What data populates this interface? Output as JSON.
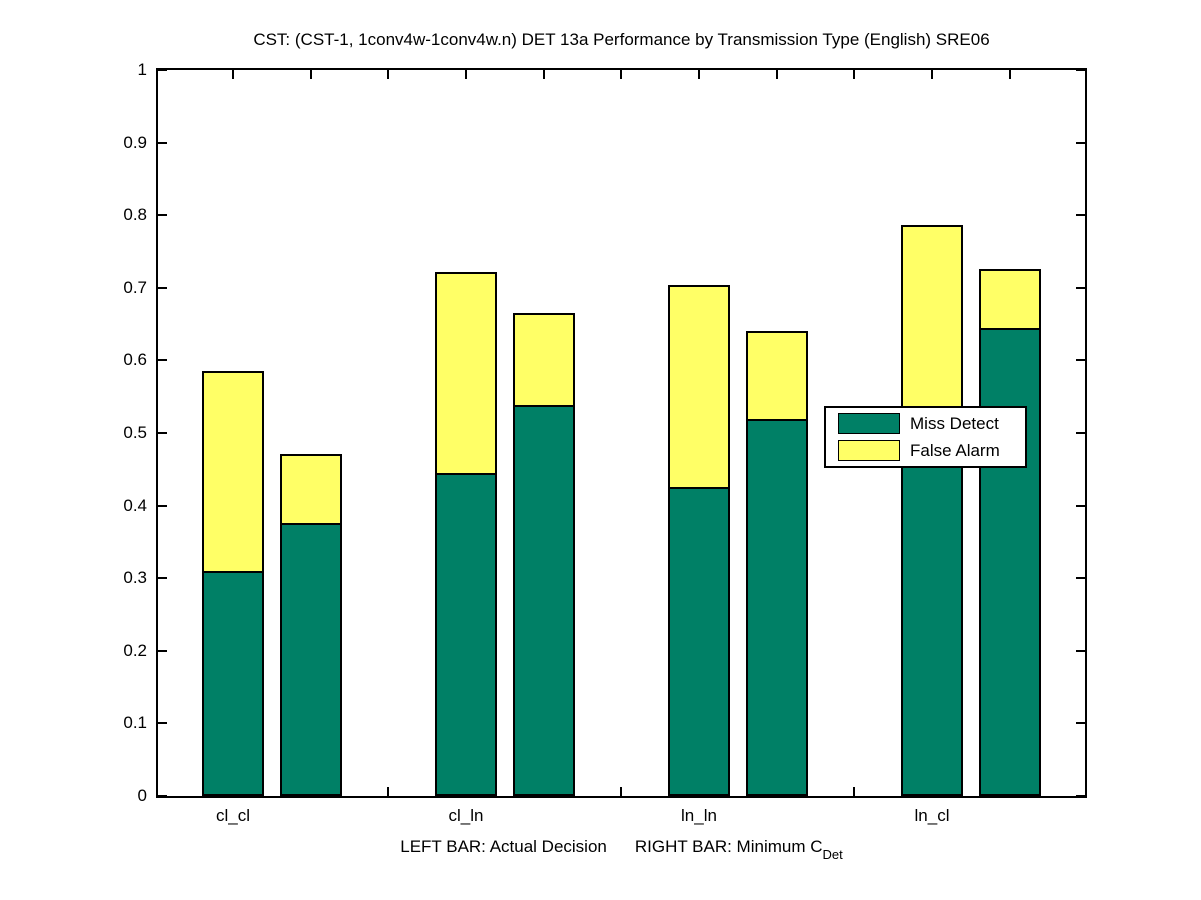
{
  "title": "CST: (CST-1, 1conv4w-1conv4w.n) DET 13a Performance by Transmission Type (English) SRE06",
  "xlabel": {
    "text_left": "LEFT BAR: Actual Decision",
    "text_right": "RIGHT BAR: Minimum C",
    "subscript": "Det"
  },
  "chart_data": {
    "type": "bar",
    "stacked": true,
    "title": "CST: (CST-1, 1conv4w-1conv4w.n) DET 13a Performance by Transmission Type (English) SRE06",
    "categories": [
      "cl_cl",
      "cl_ln",
      "ln_ln",
      "ln_cl"
    ],
    "bar_variants": [
      "Actual Decision (left bar)",
      "Minimum CDet (right bar)"
    ],
    "series": [
      {
        "name": "Miss Detect",
        "color": "#008066",
        "values_left": [
          0.31,
          0.445,
          0.426,
          0.53
        ],
        "values_right": [
          0.376,
          0.538,
          0.519,
          0.644
        ]
      },
      {
        "name": "False Alarm",
        "color": "#ffff66",
        "values_left": [
          0.276,
          0.277,
          0.278,
          0.256
        ],
        "values_right": [
          0.095,
          0.128,
          0.121,
          0.082
        ]
      }
    ],
    "stack_totals_left": [
      0.586,
      0.722,
      0.704,
      0.786
    ],
    "stack_totals_right": [
      0.471,
      0.666,
      0.64,
      0.726
    ],
    "ylim": [
      0,
      1
    ],
    "ytick_labels": [
      "0",
      "0.1",
      "0.2",
      "0.3",
      "0.4",
      "0.5",
      "0.6",
      "0.7",
      "0.8",
      "0.9",
      "1"
    ],
    "grid": false,
    "legend_position": "inside-right",
    "legend_entries": [
      "Miss Detect",
      "False Alarm"
    ]
  }
}
